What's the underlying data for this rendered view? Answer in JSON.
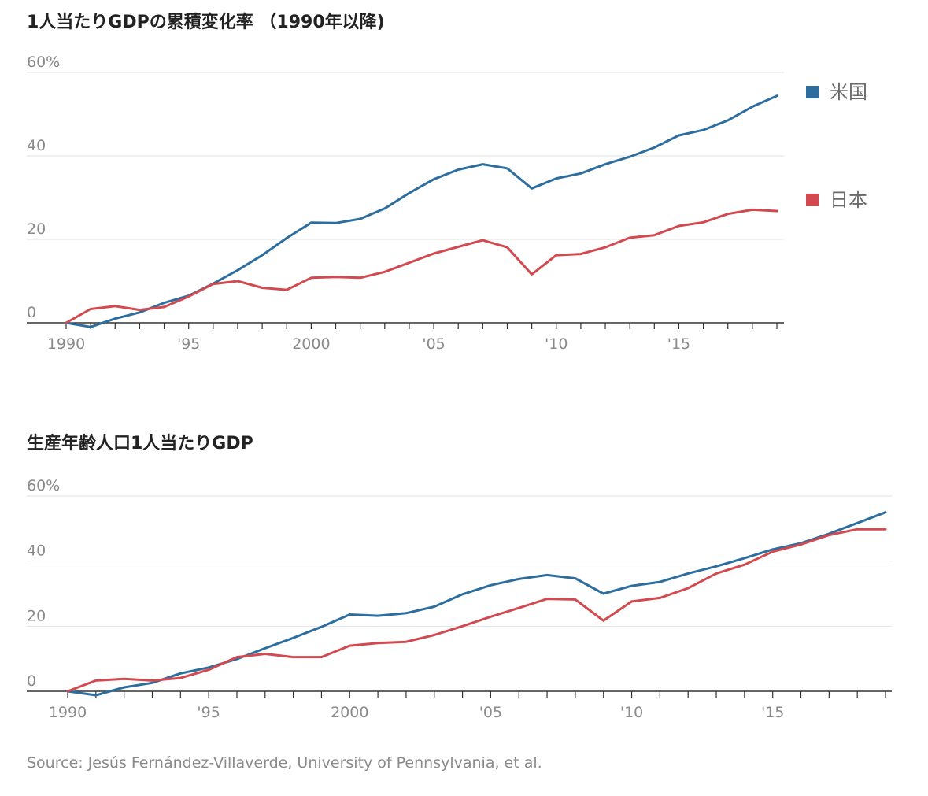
{
  "colors": {
    "us": "#2d6e9e",
    "japan": "#d24a4f",
    "grid": "#e2e2e2",
    "axis": "#333333",
    "label": "#8a8a8a"
  },
  "chart_data": [
    {
      "type": "line",
      "title": "1人当たりGDPの累積変化率 （1990年以降)",
      "x": [
        1990,
        1991,
        1992,
        1993,
        1994,
        1995,
        1996,
        1997,
        1998,
        1999,
        2000,
        2001,
        2002,
        2003,
        2004,
        2005,
        2006,
        2007,
        2008,
        2009,
        2010,
        2011,
        2012,
        2013,
        2014,
        2015,
        2016,
        2017,
        2018,
        2019
      ],
      "ylim": [
        0,
        60
      ],
      "y_ticks": [
        "0",
        "20",
        "40",
        "60%"
      ],
      "x_tick_labels": [
        {
          "year": 1990,
          "label": "1990"
        },
        {
          "year": 1995,
          "label": "'95"
        },
        {
          "year": 2000,
          "label": "2000"
        },
        {
          "year": 2005,
          "label": "'05"
        },
        {
          "year": 2010,
          "label": "'10"
        },
        {
          "year": 2015,
          "label": "'15"
        }
      ],
      "grid": true,
      "legend_position": "right",
      "series": [
        {
          "name": "米国",
          "color": "#2d6e9e",
          "values": [
            0,
            -1,
            1,
            2.5,
            4.8,
            6.5,
            9.4,
            12.6,
            16.2,
            20.3,
            24.0,
            23.9,
            24.9,
            27.4,
            31.1,
            34.4,
            36.7,
            38.0,
            37.0,
            32.2,
            34.6,
            35.8,
            38.0,
            39.8,
            42.0,
            44.9,
            46.2,
            48.5,
            51.8,
            54.4
          ]
        },
        {
          "name": "日本",
          "color": "#d24a4f",
          "values": [
            0,
            3.3,
            4.0,
            3.1,
            3.8,
            6.3,
            9.3,
            10.0,
            8.4,
            7.9,
            10.8,
            11.0,
            10.8,
            12.2,
            14.4,
            16.6,
            18.2,
            19.8,
            18.1,
            11.6,
            16.2,
            16.5,
            18.1,
            20.4,
            21.0,
            23.2,
            24.1,
            26.1,
            27.1,
            26.8
          ]
        }
      ]
    },
    {
      "type": "line",
      "title": "生産年齢人口1人当たりGDP",
      "x": [
        1990,
        1991,
        1992,
        1993,
        1994,
        1995,
        1996,
        1997,
        1998,
        1999,
        2000,
        2001,
        2002,
        2003,
        2004,
        2005,
        2006,
        2007,
        2008,
        2009,
        2010,
        2011,
        2012,
        2013,
        2014,
        2015,
        2016,
        2017,
        2018,
        2019
      ],
      "ylim": [
        0,
        60
      ],
      "y_ticks": [
        "0",
        "20",
        "40",
        "60%"
      ],
      "x_tick_labels": [
        {
          "year": 1990,
          "label": "1990"
        },
        {
          "year": 1995,
          "label": "'95"
        },
        {
          "year": 2000,
          "label": "2000"
        },
        {
          "year": 2005,
          "label": "'05"
        },
        {
          "year": 2010,
          "label": "'10"
        },
        {
          "year": 2015,
          "label": "'15"
        }
      ],
      "grid": true,
      "series": [
        {
          "name": "",
          "color": "#2d6e9e",
          "values": [
            0,
            -1.2,
            1.2,
            2.6,
            5.5,
            7.3,
            9.9,
            13.2,
            16.4,
            19.8,
            23.6,
            23.2,
            24.0,
            26.0,
            29.8,
            32.6,
            34.5,
            35.7,
            34.7,
            30.0,
            32.4,
            33.6,
            36.2,
            38.4,
            40.9,
            43.6,
            45.5,
            48.4,
            51.7,
            55.0
          ]
        },
        {
          "name": "",
          "color": "#d24a4f",
          "values": [
            0,
            3.3,
            3.8,
            3.3,
            4.1,
            6.6,
            10.5,
            11.5,
            10.5,
            10.5,
            14.0,
            14.8,
            15.2,
            17.3,
            20.0,
            22.9,
            25.6,
            28.4,
            28.2,
            21.7,
            27.6,
            28.7,
            31.7,
            36.2,
            38.9,
            42.9,
            45.1,
            48.0,
            49.8,
            49.8
          ]
        }
      ]
    }
  ],
  "source": "Source: Jesús Fernández-Villaverde, University of Pennsylvania, et al."
}
